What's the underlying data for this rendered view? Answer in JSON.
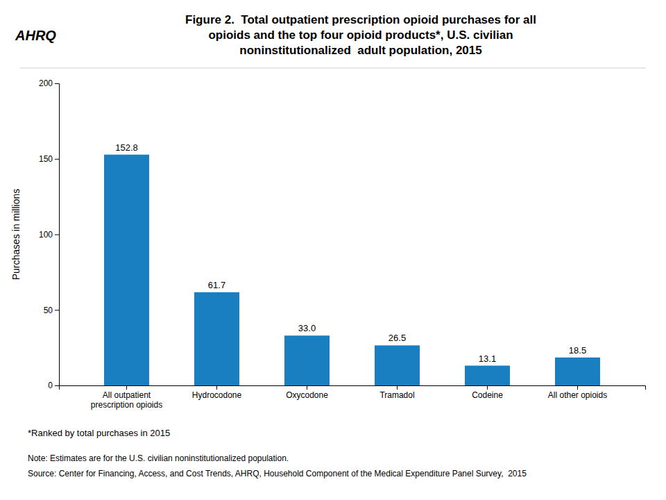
{
  "chart_data": {
    "type": "bar",
    "title": "Figure 2.  Total outpatient prescription opioid purchases for all\nopioids and the top four opioid products*, U.S. civilian\nnoninstitutionalized  adult population, 2015",
    "ylabel": "Purchases in millions",
    "categories": [
      "All outpatient\nprescription opioids",
      "Hydrocodone",
      "Oxycodone",
      "Tramadol",
      "Codeine",
      "All other opioids"
    ],
    "values": [
      152.8,
      61.7,
      33.0,
      26.5,
      13.1,
      18.5
    ],
    "value_labels": [
      "152.8",
      "61.7",
      "33.0",
      "26.5",
      "13.1",
      "18.5"
    ],
    "color": "#1a7fc1",
    "ylim": [
      0,
      200
    ],
    "yticks": [
      0,
      50,
      100,
      150,
      200
    ],
    "grid": false,
    "data_labels": true,
    "annotations": [
      "AHRQ",
      "*Ranked by total purchases in 2015",
      "Note: Estimates are for the U.S. civilian noninstitutionalized population.",
      "Source: Center for Financing, Access, and Cost Trends, AHRQ, Household Component of the Medical Expenditure Panel Survey,  2015"
    ]
  }
}
